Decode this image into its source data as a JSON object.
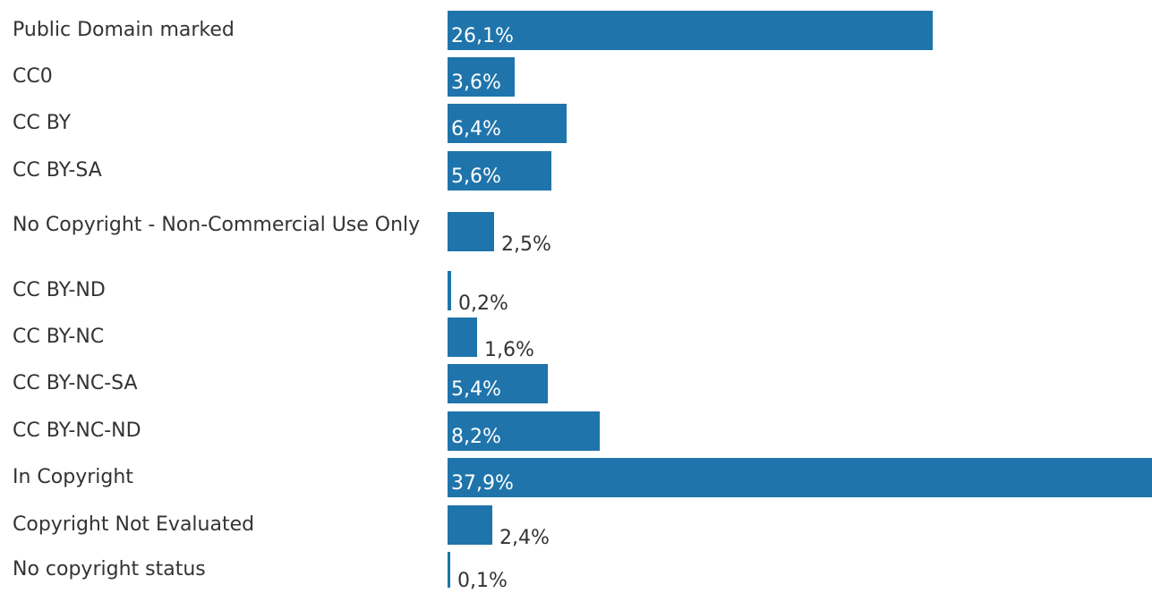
{
  "chart_data": {
    "type": "bar",
    "orientation": "horizontal",
    "categories": [
      "Public Domain marked",
      "CC0",
      "CC BY",
      "CC BY-SA",
      "No Copyright - Non-Commercial Use Only",
      "CC BY-ND",
      "CC BY-NC",
      "CC BY-NC-SA",
      "CC BY-NC-ND",
      "In Copyright",
      "Copyright Not Evaluated",
      "No copyright status"
    ],
    "values": [
      26.1,
      3.6,
      6.4,
      5.6,
      2.5,
      0.2,
      1.6,
      5.4,
      8.2,
      37.9,
      2.4,
      0.1
    ],
    "value_labels": [
      "26,1%",
      "3,6%",
      "6,4%",
      "5,6%",
      "2,5%",
      "0,2%",
      "1,6%",
      "5,4%",
      "8,2%",
      "37,9%",
      "2,4%",
      "0,1%"
    ],
    "unit": "%",
    "xlim": [
      0,
      37.9
    ],
    "grid": false,
    "legend": "none",
    "bar_color": "#1f74ab",
    "title": "",
    "xlabel": "",
    "ylabel": ""
  }
}
